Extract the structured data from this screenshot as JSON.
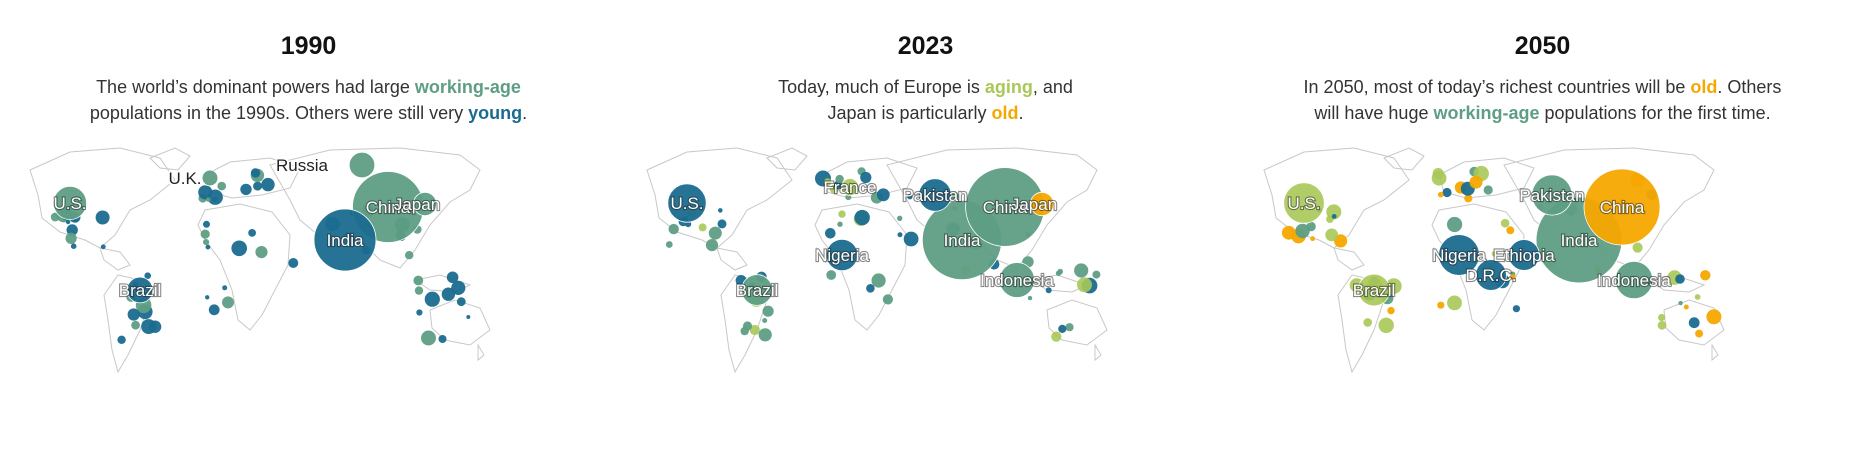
{
  "colors": {
    "young": "#1a6b8f",
    "working_age": "#5e9e84",
    "aging": "#a9c858",
    "old": "#f5a800"
  },
  "panels": [
    {
      "title": "1990",
      "desc": [
        [
          {
            "t": "The world’s dominant powers had large "
          },
          {
            "t": "working-age",
            "c": "working_age"
          }
        ],
        [
          {
            "t": "populations in the 1990s. Others were still very "
          },
          {
            "t": "young",
            "c": "young"
          },
          {
            "t": "."
          }
        ]
      ]
    },
    {
      "title": "2023",
      "desc": [
        [
          {
            "t": "Today, much of Europe is "
          },
          {
            "t": "aging",
            "c": "aging"
          },
          {
            "t": ", and"
          }
        ],
        [
          {
            "t": "Japan is particularly "
          },
          {
            "t": "old",
            "c": "old"
          },
          {
            "t": "."
          }
        ]
      ]
    },
    {
      "title": "2050",
      "desc": [
        [
          {
            "t": "In 2050, most of today’s richest countries will be "
          },
          {
            "t": "old",
            "c": "old"
          },
          {
            "t": ". Others"
          }
        ],
        [
          {
            "t": "will have huge "
          },
          {
            "t": "working-age",
            "c": "working_age"
          },
          {
            "t": " populations for the first time."
          }
        ]
      ]
    }
  ],
  "chart_data": [
    {
      "type": "bubble-map",
      "title": "1990",
      "categories": [
        "young",
        "working_age",
        "aging",
        "old"
      ],
      "labeled_countries": [
        {
          "name": "U.S.",
          "category": "working_age",
          "population_m": 250
        },
        {
          "name": "U.K.",
          "category": "working_age",
          "population_m": 57
        },
        {
          "name": "Russia",
          "category": "working_age",
          "population_m": 148
        },
        {
          "name": "China",
          "category": "working_age",
          "population_m": 1140
        },
        {
          "name": "Japan",
          "category": "working_age",
          "population_m": 123
        },
        {
          "name": "India",
          "category": "young",
          "population_m": 870
        },
        {
          "name": "Brazil",
          "category": "young",
          "population_m": 150
        }
      ]
    },
    {
      "type": "bubble-map",
      "title": "2023",
      "categories": [
        "young",
        "working_age",
        "aging",
        "old"
      ],
      "labeled_countries": [
        {
          "name": "U.S.",
          "category": "young",
          "population_m": 335
        },
        {
          "name": "France",
          "category": "aging",
          "population_m": 65
        },
        {
          "name": "Pakistan",
          "category": "young",
          "population_m": 240
        },
        {
          "name": "China",
          "category": "working_age",
          "population_m": 1410
        },
        {
          "name": "Japan",
          "category": "old",
          "population_m": 124
        },
        {
          "name": "India",
          "category": "working_age",
          "population_m": 1430
        },
        {
          "name": "Nigeria",
          "category": "young",
          "population_m": 224
        },
        {
          "name": "Brazil",
          "category": "working_age",
          "population_m": 216
        },
        {
          "name": "Indonesia",
          "category": "working_age",
          "population_m": 278
        }
      ]
    },
    {
      "type": "bubble-map",
      "title": "2050",
      "categories": [
        "young",
        "working_age",
        "aging",
        "old"
      ],
      "labeled_countries": [
        {
          "name": "U.S.",
          "category": "aging",
          "population_m": 375
        },
        {
          "name": "Pakistan",
          "category": "working_age",
          "population_m": 366
        },
        {
          "name": "China",
          "category": "old",
          "population_m": 1310
        },
        {
          "name": "India",
          "category": "working_age",
          "population_m": 1670
        },
        {
          "name": "Nigeria",
          "category": "young",
          "population_m": 377
        },
        {
          "name": "Ethiopia",
          "category": "young",
          "population_m": 215
        },
        {
          "name": "D.R.C.",
          "category": "young",
          "population_m": 215
        },
        {
          "name": "Brazil",
          "category": "aging",
          "population_m": 230
        },
        {
          "name": "Indonesia",
          "category": "working_age",
          "population_m": 317
        }
      ]
    }
  ]
}
